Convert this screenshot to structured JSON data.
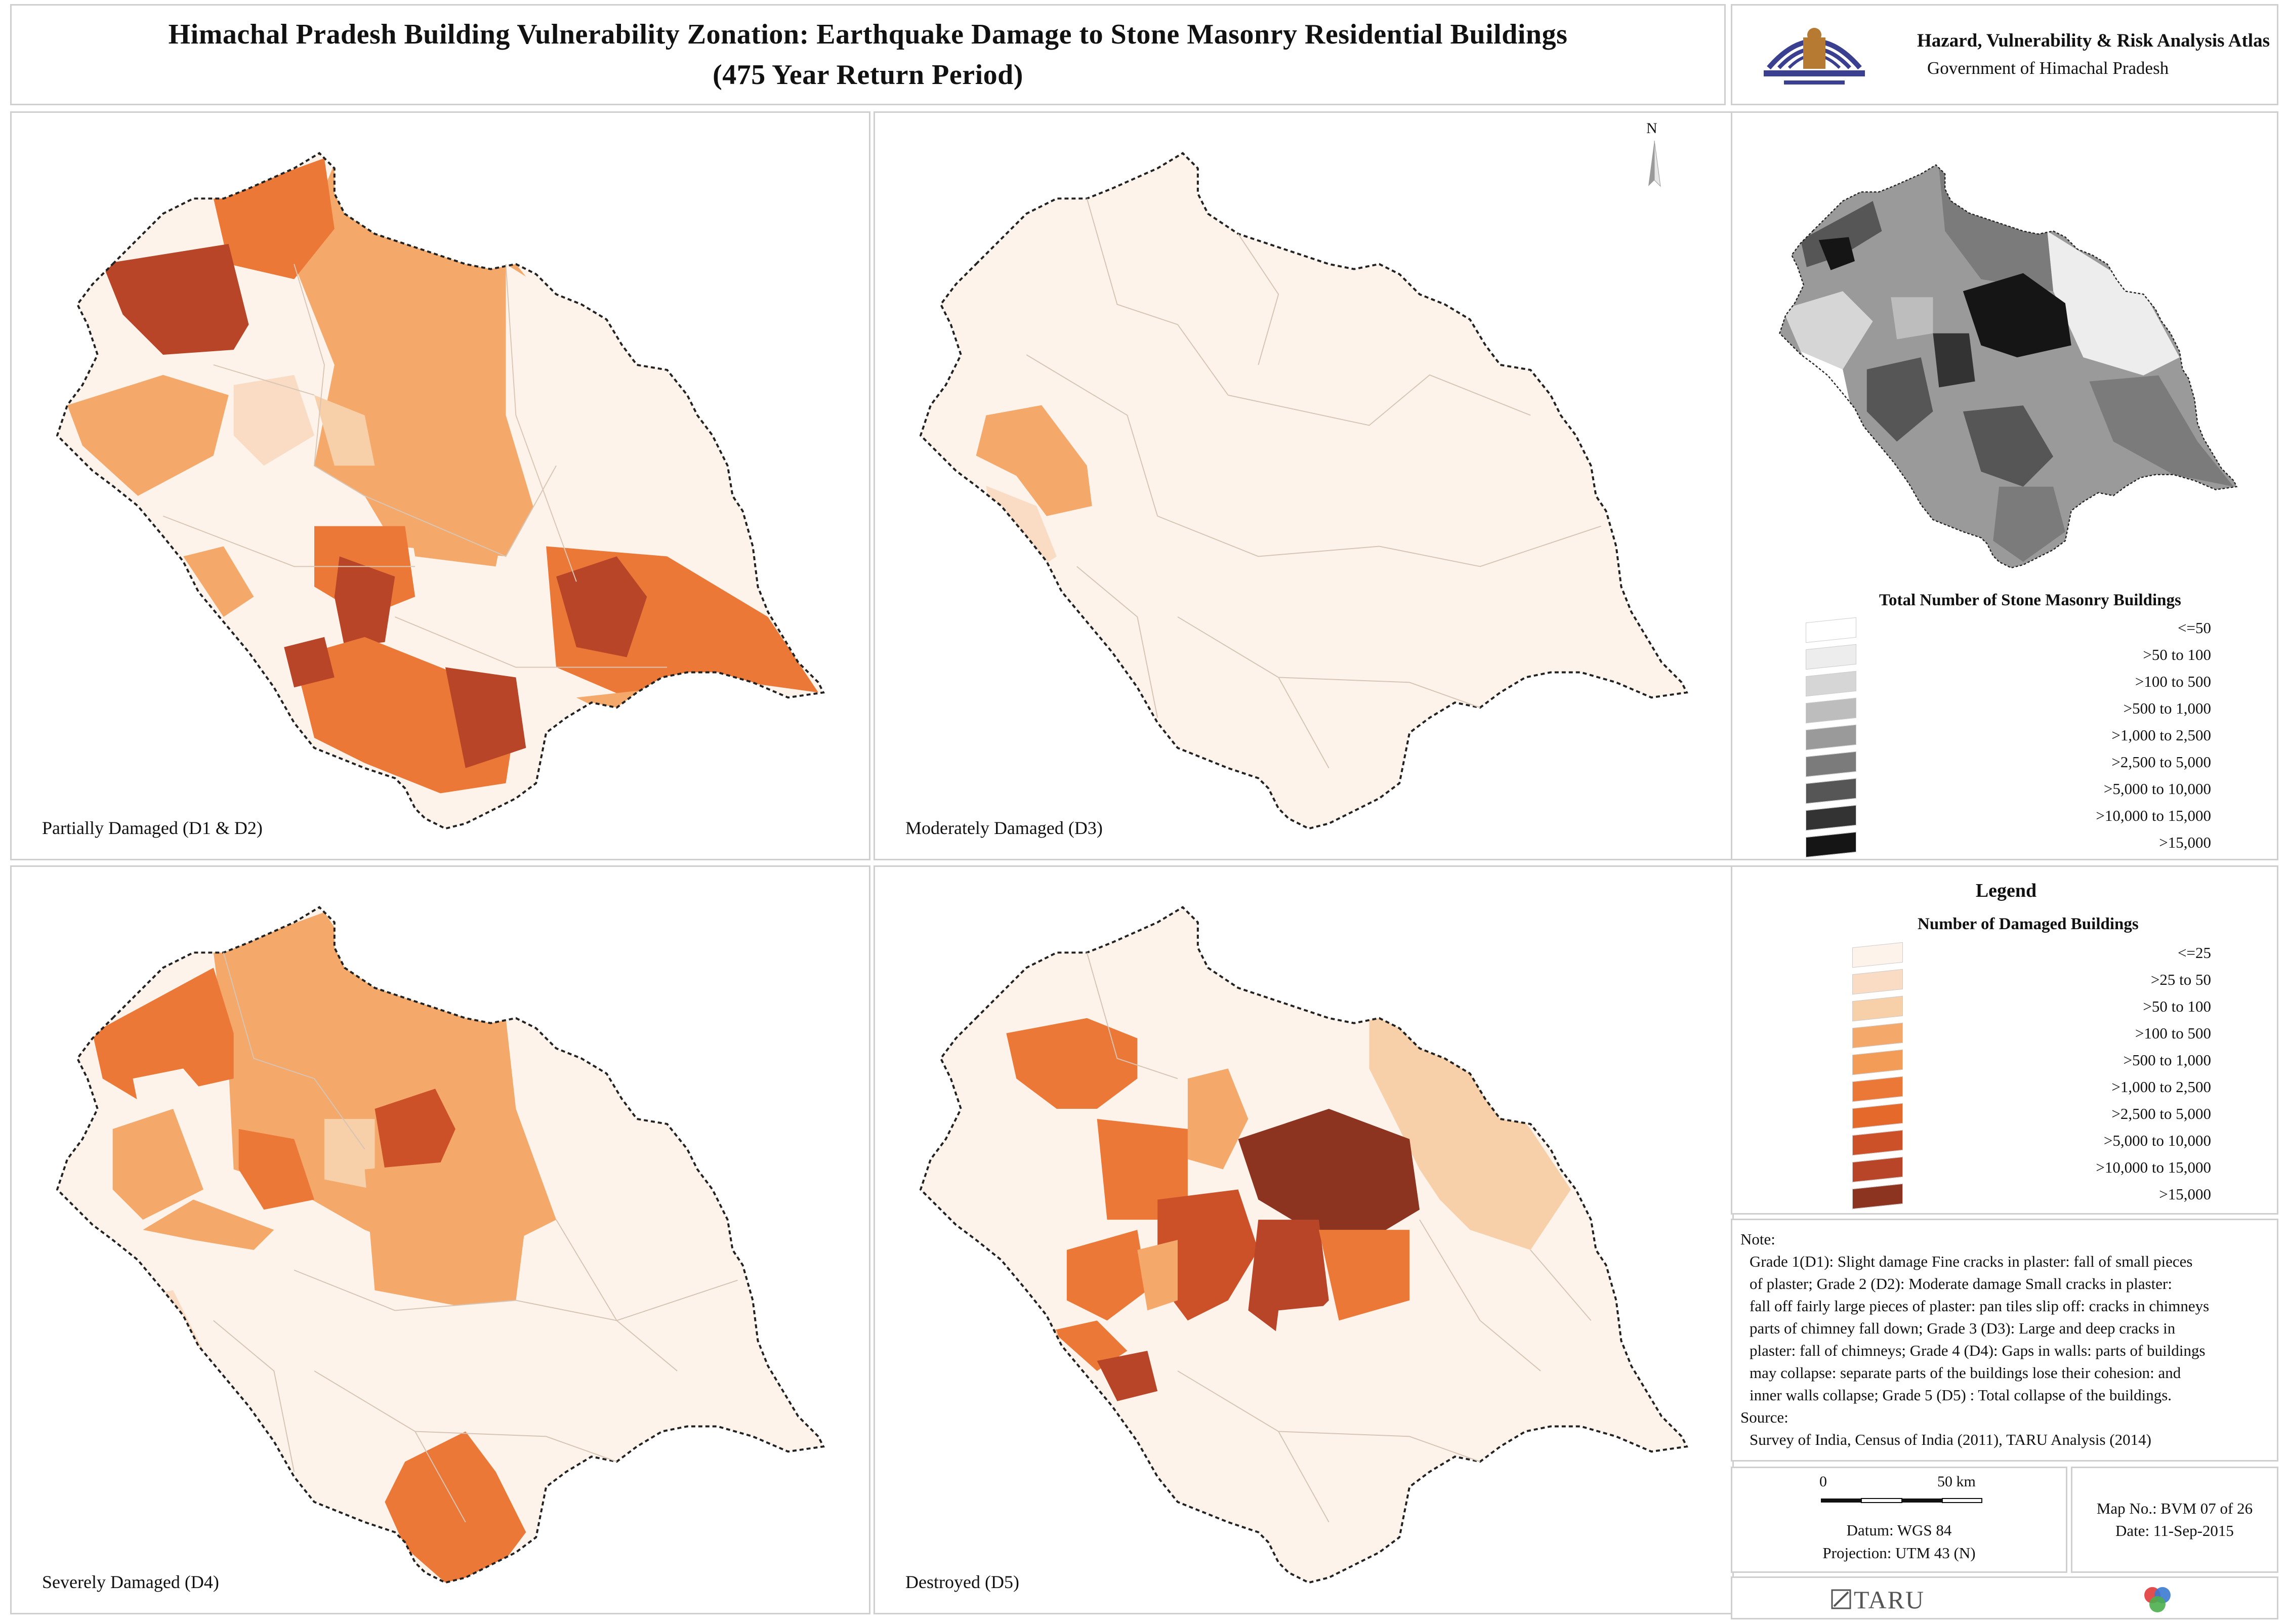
{
  "title": {
    "line1": "Himachal Pradesh Building Vulnerability Zonation: Earthquake Damage to Stone Masonry Residential Buildings",
    "line2": "(475 Year Return Period)"
  },
  "atlas": {
    "title": "Hazard, Vulnerability & Risk Analysis Atlas",
    "subtitle": "Government of Himachal Pradesh"
  },
  "panels": [
    {
      "label": "Partially Damaged (D1 & D2)"
    },
    {
      "label": "Moderately Damaged (D3)"
    },
    {
      "label": "Severely Damaged (D4)"
    },
    {
      "label": "Destroyed (D5)"
    }
  ],
  "north_label": "N",
  "inset_legend": {
    "title": "Total Number of Stone Masonry Buildings",
    "classes": [
      {
        "label": "<=50",
        "color": "#ffffff"
      },
      {
        "label": ">50 to 100",
        "color": "#ededed"
      },
      {
        "label": ">100 to 500",
        "color": "#d6d6d6"
      },
      {
        "label": ">500 to 1,000",
        "color": "#bdbdbd"
      },
      {
        "label": ">1,000 to 2,500",
        "color": "#9a9a9a"
      },
      {
        "label": ">2,500 to 5,000",
        "color": "#7b7b7b"
      },
      {
        "label": ">5,000 to 10,000",
        "color": "#565656"
      },
      {
        "label": ">10,000 to 15,000",
        "color": "#333333"
      },
      {
        "label": ">15,000",
        "color": "#151515"
      }
    ]
  },
  "legend": {
    "heading": "Legend",
    "title": "Number of Damaged Buildings",
    "classes": [
      {
        "label": "<=25",
        "color": "#fdf3ea"
      },
      {
        "label": ">25 to 50",
        "color": "#f9dcc3"
      },
      {
        "label": ">50 to 100",
        "color": "#f7cfa8"
      },
      {
        "label": ">100 to 500",
        "color": "#f4a96b"
      },
      {
        "label": ">500 to 1,000",
        "color": "#f29c58"
      },
      {
        "label": ">1,000 to 2,500",
        "color": "#ec7838"
      },
      {
        "label": ">2,500 to 5,000",
        "color": "#e6692c"
      },
      {
        "label": ">5,000 to 10,000",
        "color": "#cd5128"
      },
      {
        "label": ">10,000 to 15,000",
        "color": "#b84527"
      },
      {
        "label": ">15,000",
        "color": "#8c341f"
      }
    ]
  },
  "note": {
    "heading": "Note:",
    "lines": [
      "Grade 1(D1): Slight damage Fine cracks in plaster: fall of small pieces",
      "of plaster; Grade 2 (D2): Moderate damage Small cracks in plaster:",
      "fall off fairly large pieces of plaster: pan tiles slip off: cracks in chimneys",
      "parts of chimney fall down; Grade 3 (D3): Large and deep cracks in",
      "plaster: fall of chimneys; Grade 4 (D4): Gaps in walls: parts of buildings",
      "may collapse: separate parts of the buildings lose their cohesion: and",
      "inner walls collapse; Grade 5 (D5) : Total collapse of the buildings."
    ],
    "source_heading": "Source:",
    "source": "Survey of India, Census of India (2011),  TARU Analysis (2014)"
  },
  "scale": {
    "start": "0",
    "end": "50 km",
    "datum": "Datum: WGS 84",
    "projection": "Projection: UTM 43 (N)"
  },
  "map_info": {
    "map_no": "Map No.: BVM 07 of 26",
    "date": "Date: 11-Sep-2015"
  },
  "footer": {
    "brand": "TARU"
  },
  "colors": {
    "d_pale": "#fdf3ea",
    "d_light": "#f9dcc3",
    "d_tan": "#f7cfa8",
    "d_mid": "#f4a96b",
    "d_orange": "#ec7838",
    "d_dark": "#cd5128",
    "d_darker": "#b84527",
    "d_darkest": "#8c341f"
  }
}
